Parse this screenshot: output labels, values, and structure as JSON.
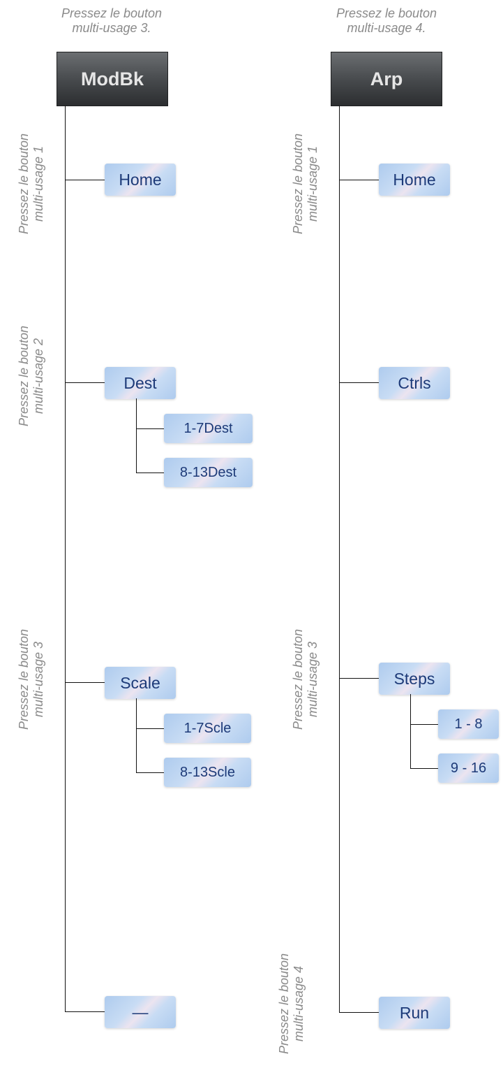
{
  "left": {
    "top_caption": [
      "Pressez le bouton",
      "multi-usage 3."
    ],
    "root": "ModBk",
    "side_labels": [
      [
        "Pressez le bouton",
        "multi-usage 1"
      ],
      [
        "Pressez le bouton",
        "multi-usage 2"
      ],
      [
        "Pressez le bouton",
        "multi-usage 3"
      ]
    ],
    "items": [
      "Home",
      "Dest",
      "Scale",
      "—"
    ],
    "dest_children": [
      "1-7Dest",
      "8-13Dest"
    ],
    "scale_children": [
      "1-7Scle",
      "8-13Scle"
    ]
  },
  "right": {
    "top_caption": [
      "Pressez le bouton",
      "multi-usage 4."
    ],
    "root": "Arp",
    "side_labels": [
      [
        "Pressez le bouton",
        "multi-usage 1"
      ],
      [
        "Pressez le bouton",
        "multi-usage 3"
      ],
      [
        "Pressez le bouton",
        "multi-usage 4"
      ]
    ],
    "items": [
      "Home",
      "Ctrls",
      "Steps",
      "Run"
    ],
    "steps_children": [
      "1 - 8",
      "9 - 16"
    ]
  }
}
